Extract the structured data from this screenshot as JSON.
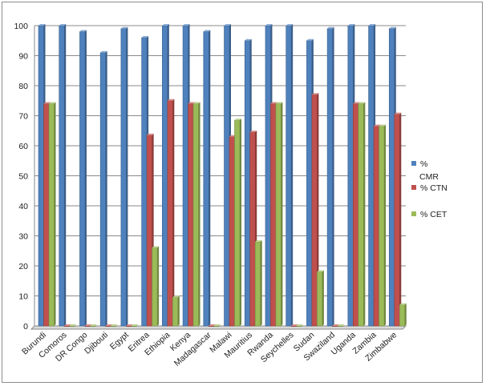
{
  "chart_data": {
    "type": "bar",
    "categories": [
      "Burundi",
      "Comoros",
      "DR Congo",
      "Djibouti",
      "Egypt",
      "Eritrea",
      "Ethiopia",
      "Kenya",
      "Madagascar",
      "Malawi",
      "Mauritius",
      "Rwanda",
      "Seychelles",
      "Sudan",
      "Swaziland",
      "Uganda",
      "Zambia",
      "Zimbabwe"
    ],
    "series": [
      {
        "name": "% CMR",
        "color": "#4f81bd",
        "values": [
          100,
          100,
          98,
          91,
          99,
          96,
          100,
          100,
          98,
          100,
          95,
          100,
          100,
          95,
          99,
          100,
          100,
          99
        ]
      },
      {
        "name": "% CTN",
        "color": "#c0504d",
        "values": [
          74,
          0,
          0,
          0,
          0,
          63.5,
          75,
          74,
          0,
          63,
          64.5,
          74,
          0,
          77,
          0,
          74,
          66.5,
          70.5
        ]
      },
      {
        "name": "% CET",
        "color": "#9bbb59",
        "values": [
          74,
          0,
          0,
          0,
          0,
          26,
          9.5,
          74,
          0,
          68.5,
          28,
          74,
          0,
          18,
          0,
          74,
          66.5,
          7
        ]
      }
    ],
    "yticks": [
      0,
      10,
      20,
      30,
      40,
      50,
      60,
      70,
      80,
      90,
      100
    ],
    "ylim": [
      0,
      100
    ],
    "grid": true,
    "legend_position": "right"
  }
}
